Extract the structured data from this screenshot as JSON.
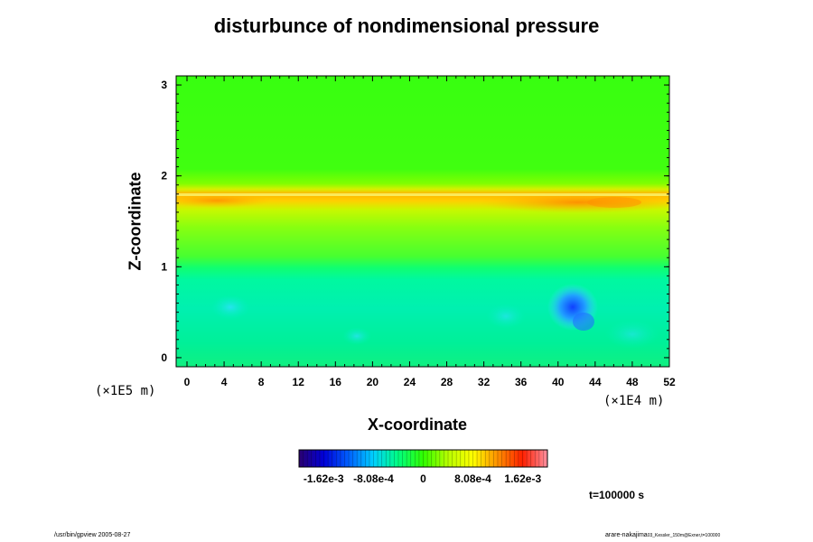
{
  "chart_data": {
    "type": "heatmap",
    "title": "disturbunce of nondimensional pressure",
    "xlabel": "X-coordinate",
    "ylabel": "Z-coordinate",
    "x_ticks": [
      "0",
      "4",
      "8",
      "12",
      "16",
      "20",
      "24",
      "28",
      "32",
      "36",
      "40",
      "44",
      "48",
      "52"
    ],
    "y_ticks": [
      "0",
      "1",
      "2",
      "3"
    ],
    "xlim": [
      0,
      52
    ],
    "ylim": [
      -0.1,
      3.1
    ],
    "x_scale_label": "(×1E4 m)",
    "y_scale_label": "(×1E5 m)",
    "colorbar": {
      "labels": [
        "-1.62e-3",
        "-8.08e-4",
        "0",
        "8.08e-4",
        "1.62e-3"
      ],
      "label_values": [
        -0.00162,
        -0.000808,
        0,
        0.000808,
        0.00162
      ],
      "range": [
        -0.00202,
        0.00202
      ],
      "colors": [
        "#2a0070",
        "#0000d8",
        "#0060ff",
        "#00d0ff",
        "#00ff80",
        "#30ff00",
        "#b8ff00",
        "#ffff00",
        "#ff9000",
        "#ff2000",
        "#ff90a0"
      ]
    },
    "field_summary": [
      {
        "region": "z 1.62-1.80, x 0-10",
        "value": 0.0009
      },
      {
        "region": "z 1.62-1.80, x 33-52",
        "value": 0.0011
      },
      {
        "region": "z 1.80-3.10",
        "value": 0.0001
      },
      {
        "region": "z 0.80-1.60",
        "value": 0.0001
      },
      {
        "region": "z -0.10-0.80",
        "value": -0.0004
      },
      {
        "region": "blob x 42, z 0.6",
        "value": -0.0012
      }
    ]
  },
  "annotations": {
    "time": "t=100000 s",
    "footer_left": "/usr/bin/gpview 2005-08-27",
    "footer_right": "arare-nakajima",
    "footer_right_small": "03_Kessler_150m@Exner,t=100000"
  }
}
